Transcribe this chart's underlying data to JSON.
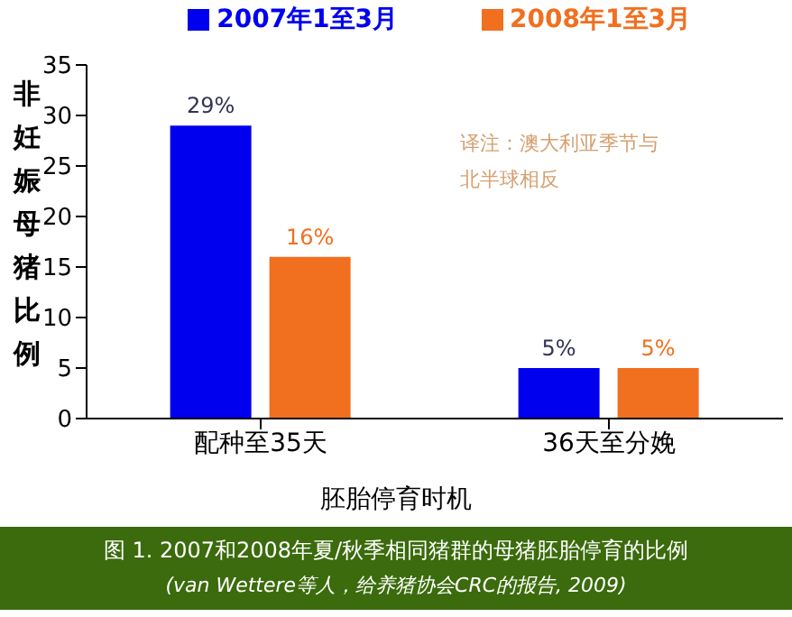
{
  "chart_data": {
    "type": "bar",
    "xlabel": "胚胎停育时机",
    "ylabel": "非妊娠母猪比例",
    "categories": [
      "配种至35天",
      "36天至分娩"
    ],
    "series": [
      {
        "name": "2007年1至3月",
        "color": "#0000ee",
        "values": [
          29,
          5
        ],
        "value_labels": [
          "29%",
          "5%"
        ]
      },
      {
        "name": "2008年1至3月",
        "color": "#f07020",
        "values": [
          16,
          5
        ],
        "value_labels": [
          "16%",
          "5%"
        ]
      }
    ],
    "ylim": [
      0,
      35
    ],
    "yticks": [
      0,
      5,
      10,
      15,
      20,
      25,
      30,
      35
    ],
    "grid": false,
    "legend": "top right",
    "annotations": [
      "译注：澳大利亚季节与北半球相反",
      "图 1. 2007和2008年夏/秋季相同猪群的母猪胚胎停育的比例",
      "(van Wettere等人，给养猪协会CRC的报告, 2009)"
    ]
  }
}
